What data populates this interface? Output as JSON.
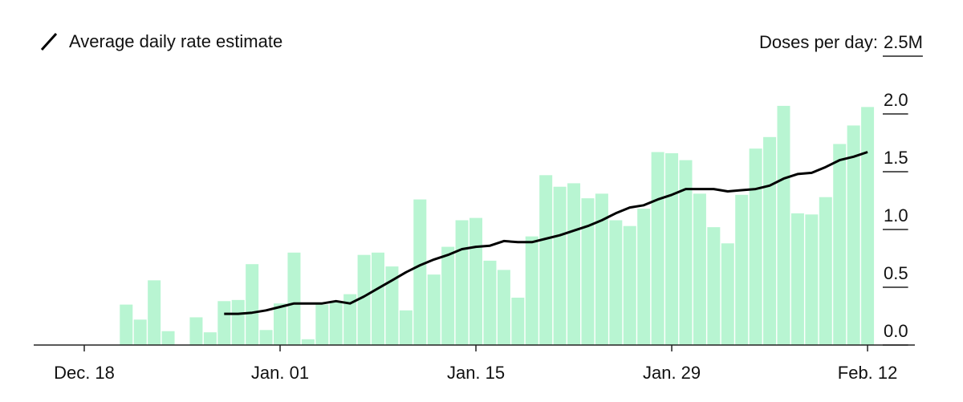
{
  "chart_data": {
    "type": "bar",
    "y_axis_label": "Doses per day:",
    "categories": [
      "Dec. 18",
      null,
      null,
      null,
      null,
      null,
      null,
      null,
      null,
      null,
      null,
      null,
      null,
      null,
      "Jan. 01",
      null,
      null,
      null,
      null,
      null,
      null,
      null,
      null,
      null,
      null,
      null,
      null,
      null,
      "Jan. 15",
      null,
      null,
      null,
      null,
      null,
      null,
      null,
      null,
      null,
      null,
      null,
      null,
      null,
      "Jan. 29",
      null,
      null,
      null,
      null,
      null,
      null,
      null,
      null,
      null,
      null,
      null,
      null,
      null,
      "Feb. 12"
    ],
    "series": [
      {
        "type": "bar",
        "color": "#b8f5d2",
        "values": [
          null,
          null,
          null,
          0.35,
          0.22,
          0.56,
          0.12,
          null,
          0.24,
          0.11,
          0.38,
          0.39,
          0.7,
          0.13,
          0.36,
          0.8,
          0.05,
          0.35,
          0.38,
          0.44,
          0.78,
          0.8,
          0.68,
          0.3,
          1.26,
          0.61,
          0.85,
          1.08,
          1.1,
          0.73,
          0.65,
          0.41,
          0.94,
          1.47,
          1.37,
          1.4,
          1.27,
          1.31,
          1.08,
          1.03,
          1.18,
          1.67,
          1.66,
          1.6,
          1.31,
          1.02,
          0.88,
          1.3,
          1.7,
          1.8,
          2.07,
          1.14,
          1.13,
          1.28,
          1.74,
          1.9,
          2.06
        ]
      },
      {
        "type": "line",
        "name": "Average daily rate estimate",
        "color": "#000000",
        "values": [
          null,
          null,
          null,
          null,
          null,
          null,
          null,
          null,
          null,
          null,
          0.27,
          0.27,
          0.28,
          0.3,
          0.33,
          0.36,
          0.36,
          0.36,
          0.38,
          0.36,
          0.42,
          0.49,
          0.56,
          0.63,
          0.69,
          0.74,
          0.78,
          0.83,
          0.85,
          0.86,
          0.9,
          0.89,
          0.89,
          0.92,
          0.95,
          0.99,
          1.03,
          1.08,
          1.14,
          1.19,
          1.21,
          1.26,
          1.3,
          1.35,
          1.35,
          1.35,
          1.33,
          1.34,
          1.35,
          1.38,
          1.44,
          1.48,
          1.49,
          1.54,
          1.6,
          1.63,
          1.67
        ]
      }
    ],
    "ylim": [
      0,
      2.5
    ],
    "yticks": [
      {
        "value": 0,
        "label": "0.0"
      },
      0.5,
      {
        "value": 1,
        "label": "1.0"
      },
      1.5,
      {
        "value": 2,
        "label": "2.0"
      },
      {
        "value": 2.5,
        "label": "2.5M"
      }
    ]
  }
}
